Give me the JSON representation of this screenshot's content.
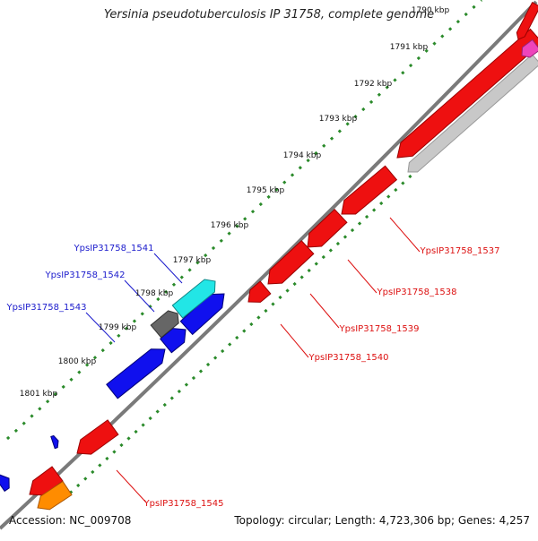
{
  "title": "Yersinia pseudotuberculosis IP 31758, complete genome",
  "footer": {
    "accession": "Accession: NC_009708",
    "summary": "Topology: circular; Length: 4,723,306 bp; Genes: 4,257"
  },
  "scale_ticks": [
    "1790 kbp",
    "1791 kbp",
    "1792 kbp",
    "1793 kbp",
    "1794 kbp",
    "1795 kbp",
    "1796 kbp",
    "1797 kbp",
    "1798 kbp",
    "1799 kbp",
    "1800 kbp",
    "1801 kbp"
  ],
  "gene_labels_top": [
    "YpsIP31758_1541",
    "YpsIP31758_1542",
    "YpsIP31758_1543"
  ],
  "gene_labels_bottom": [
    "YpsIP31758_1537",
    "YpsIP31758_1538",
    "YpsIP31758_1539",
    "YpsIP31758_1540",
    "YpsIP31758_1545"
  ],
  "colors": {
    "forward_gene": "#1010ee",
    "reverse_gene": "#ee1010",
    "label_forward": "#1a1acc",
    "label_reverse": "#dd1111",
    "scale_dots": "#2a8a2a",
    "backbone": "#7a7a7a",
    "gray_feature": "#c8c8c8",
    "cyan_feature": "#22e6e6",
    "dark_gray_feature": "#666666",
    "orange_feature": "#ff8c00",
    "magenta_feature": "#ee44bb"
  }
}
